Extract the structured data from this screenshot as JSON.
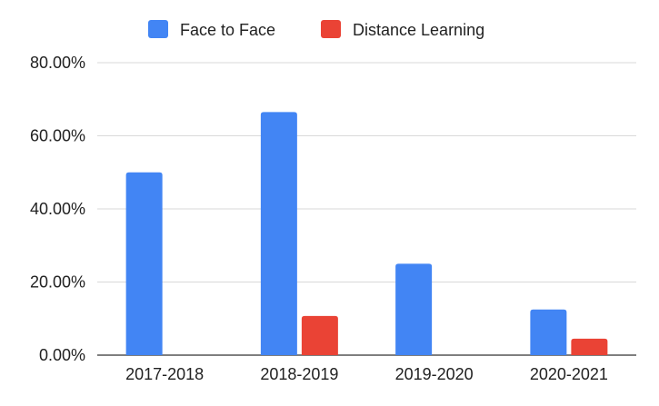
{
  "chart_data": {
    "type": "bar",
    "categories": [
      "2017-2018",
      "2018-2019",
      "2019-2020",
      "2020-2021"
    ],
    "series": [
      {
        "name": "Face to Face",
        "color": "#4285F4",
        "values": [
          50.0,
          66.5,
          25.0,
          12.5
        ]
      },
      {
        "name": "Distance Learning",
        "color": "#EA4335",
        "values": [
          0,
          10.7,
          0,
          4.5
        ]
      }
    ],
    "y_ticks": [
      "0.00%",
      "20.00%",
      "40.00%",
      "60.00%",
      "80.00%"
    ],
    "ylim": [
      0,
      80
    ],
    "grid": true,
    "legend_position": "top-center"
  }
}
